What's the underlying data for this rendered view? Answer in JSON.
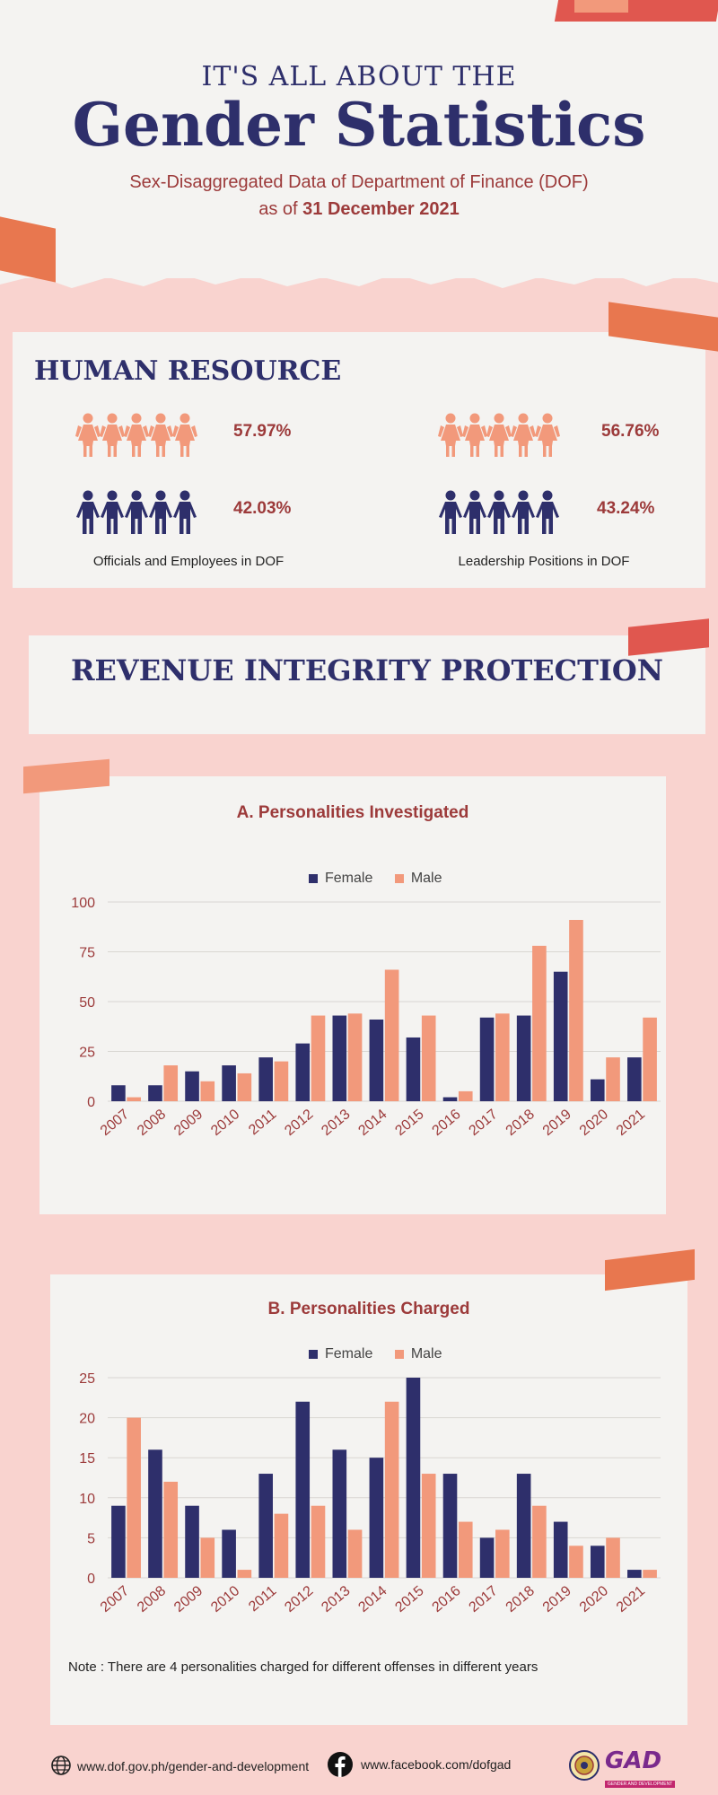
{
  "header": {
    "kicker": "IT'S ALL ABOUT THE",
    "title": "Gender Statistics",
    "subtitle": "Sex-Disaggregated Data of Department of Finance (DOF)",
    "date_prefix": "as of ",
    "date": "31 December 2021"
  },
  "hr": {
    "heading": "HUMAN RESOURCE",
    "officials": {
      "female_pct": "57.97%",
      "male_pct": "42.03%",
      "caption": "Officials and Employees in DOF"
    },
    "leadership": {
      "female_pct": "56.76%",
      "male_pct": "43.24%",
      "caption": "Leadership Positions in DOF"
    }
  },
  "section_heading": "REVENUE INTEGRITY PROTECTION",
  "colors": {
    "female": "#2e2f6b",
    "male": "#f2997b",
    "accent": "#9c3a3a",
    "paper": "#f4f3f1",
    "background": "#f9d3cf"
  },
  "legend": {
    "female": "Female",
    "male": "Male"
  },
  "chart_data": [
    {
      "type": "bar",
      "title": "A. Personalities Investigated",
      "categories": [
        "2007",
        "2008",
        "2009",
        "2010",
        "2011",
        "2012",
        "2013",
        "2014",
        "2015",
        "2016",
        "2017",
        "2018",
        "2019",
        "2020",
        "2021"
      ],
      "series": [
        {
          "name": "Female",
          "values": [
            8,
            8,
            15,
            18,
            22,
            29,
            43,
            41,
            32,
            2,
            42,
            43,
            65,
            11,
            22
          ]
        },
        {
          "name": "Male",
          "values": [
            2,
            18,
            10,
            14,
            20,
            43,
            44,
            66,
            43,
            5,
            44,
            78,
            91,
            22,
            42
          ]
        }
      ],
      "yticks": [
        0,
        25,
        50,
        75,
        100
      ],
      "ylim": [
        0,
        100
      ],
      "grid": true,
      "legend": "top-center"
    },
    {
      "type": "bar",
      "title": "B. Personalities Charged",
      "categories": [
        "2007",
        "2008",
        "2009",
        "2010",
        "2011",
        "2012",
        "2013",
        "2014",
        "2015",
        "2016",
        "2017",
        "2018",
        "2019",
        "2020",
        "2021"
      ],
      "series": [
        {
          "name": "Female",
          "values": [
            9,
            16,
            9,
            6,
            13,
            22,
            16,
            15,
            25,
            13,
            5,
            13,
            7,
            4,
            1
          ]
        },
        {
          "name": "Male",
          "values": [
            20,
            12,
            5,
            1,
            8,
            9,
            6,
            22,
            13,
            7,
            6,
            9,
            4,
            5,
            1
          ]
        }
      ],
      "yticks": [
        0,
        5,
        10,
        15,
        20,
        25
      ],
      "ylim": [
        0,
        25
      ],
      "grid": true,
      "legend": "top-center",
      "note": "Note : There are 4 personalities charged for different offenses in different years"
    }
  ],
  "footer": {
    "website": "www.dof.gov.ph/gender-and-development",
    "facebook": "www.facebook.com/dofgad",
    "icons": [
      "globe-icon",
      "facebook-icon",
      "seal-logo",
      "gad-logo"
    ],
    "gad_logo_text": "GAD",
    "gad_logo_sub": "GENDER AND DEVELOPMENT"
  }
}
